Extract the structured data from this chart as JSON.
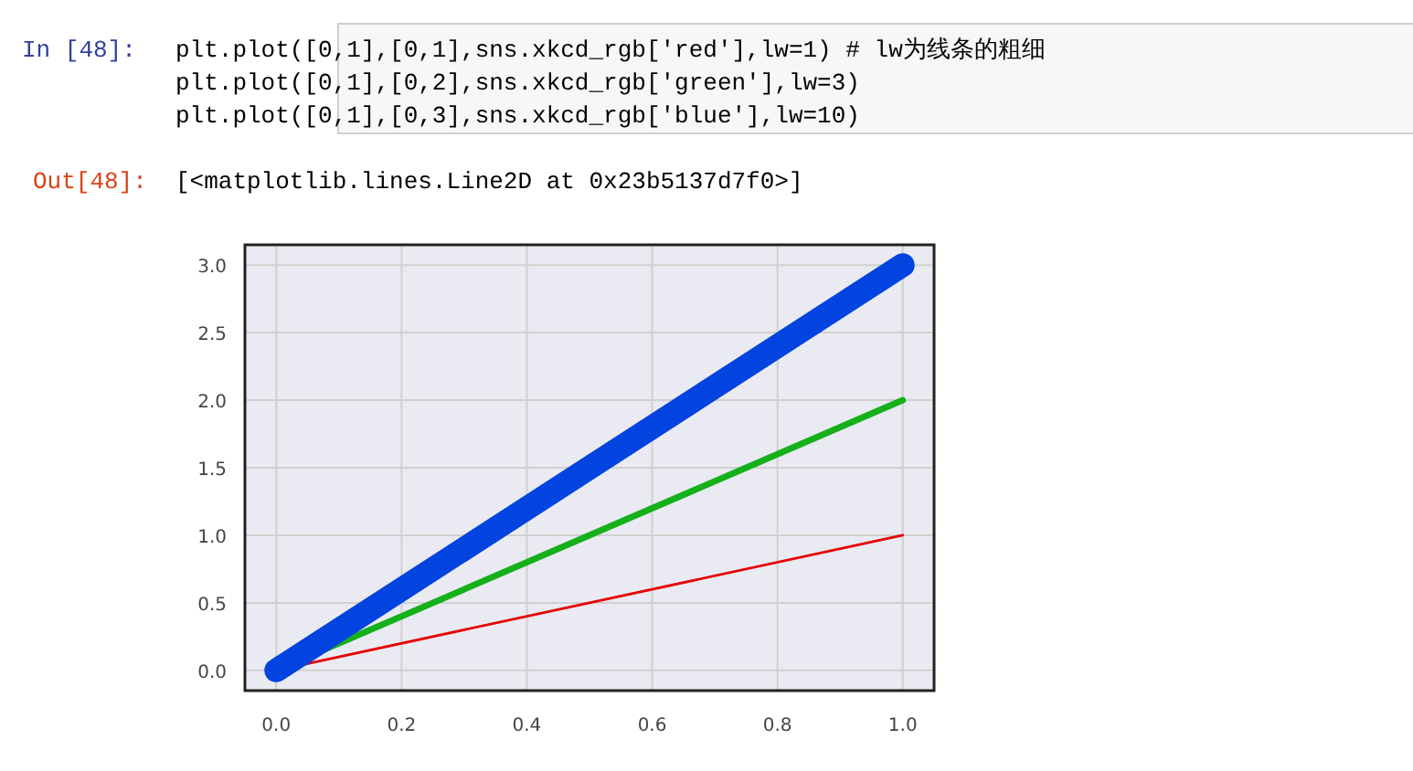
{
  "chart_data": {
    "type": "line",
    "x": [
      0,
      1
    ],
    "series": [
      {
        "color": "#e50000",
        "values": [
          0,
          1
        ]
      },
      {
        "color": "#15b01a",
        "values": [
          0,
          2
        ]
      },
      {
        "color": "#0343df",
        "values": [
          0,
          3
        ]
      }
    ],
    "xlim": [
      -0.05,
      1.05
    ],
    "ylim": [
      -0.15,
      3.15
    ],
    "xticks": [
      {
        "value": 0,
        "label": "0.0"
      },
      {
        "value": 0.2,
        "label": "0.2"
      },
      {
        "value": 0.4,
        "label": "0.4"
      },
      {
        "value": 0.6,
        "label": "0.6"
      },
      {
        "value": 0.8,
        "label": "0.8"
      },
      {
        "value": 1,
        "label": "1.0"
      }
    ],
    "yticks": [
      {
        "value": 0,
        "label": "0.0"
      },
      {
        "value": 0.5,
        "label": "0.5"
      },
      {
        "value": 1,
        "label": "1.0"
      },
      {
        "value": 1.5,
        "label": "1.5"
      },
      {
        "value": 2,
        "label": "2.0"
      },
      {
        "value": 2.5,
        "label": "2.5"
      },
      {
        "value": 3,
        "label": "3.0"
      }
    ],
    "grid": true,
    "annotations": [
      "In  [48]:",
      "plt.plot([0,1],[0,1],sns.xkcd_rgb['red'],lw=1) # lw为线条的粗细",
      "plt.plot([0,1],[0,2],sns.xkcd_rgb['green'],lw=3)",
      "plt.plot([0,1],[0,3],sns.xkcd_rgb['blue'],lw=10)",
      "Out[48]:",
      "[<matplotlib.lines.Line2D at 0x23b5137d7f0>]"
    ]
  }
}
